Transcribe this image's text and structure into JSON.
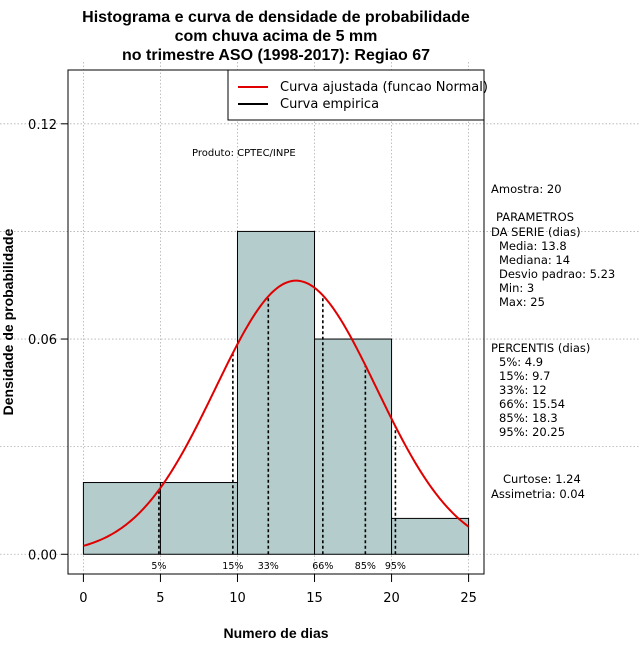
{
  "chart_data": {
    "type": "bar",
    "title": "Histograma e curva de densidade de probabilidade",
    "title_line2": "com chuva acima de 5 mm",
    "title_line3": "no trimestre ASO (1998-2017): Regiao 67",
    "xlabel": "Numero de dias",
    "ylabel": "Densidade de probabilidade",
    "xlim": [
      -1,
      26
    ],
    "ylim": [
      -0.0055,
      0.135
    ],
    "xticks": [
      0,
      5,
      10,
      15,
      20,
      25
    ],
    "xtick_labels": [
      "0",
      "5",
      "10",
      "15",
      "20",
      "25"
    ],
    "yticks": [
      0.0,
      0.06,
      0.12
    ],
    "ytick_labels": [
      "0.00",
      "0.06",
      "0.12"
    ],
    "grid": true,
    "bins": [
      {
        "from": 0,
        "to": 5,
        "density": 0.02
      },
      {
        "from": 5,
        "to": 10,
        "density": 0.02
      },
      {
        "from": 10,
        "to": 15,
        "density": 0.09
      },
      {
        "from": 15,
        "to": 20,
        "density": 0.06
      },
      {
        "from": 20,
        "to": 25,
        "density": 0.01
      }
    ],
    "normal_curve": {
      "mean": 13.8,
      "sd": 5.23,
      "x_from": 0,
      "x_to": 25
    },
    "percentile_lines": [
      {
        "label": "5%",
        "x": 4.9
      },
      {
        "label": "15%",
        "x": 9.7
      },
      {
        "label": "33%",
        "x": 12
      },
      {
        "label": "66%",
        "x": 15.54
      },
      {
        "label": "85%",
        "x": 18.3
      },
      {
        "label": "95%",
        "x": 20.25
      }
    ],
    "legend": {
      "position": "top-right",
      "entries": [
        {
          "label": "Curva ajustada (funcao Normal)",
          "color": "#e00000"
        },
        {
          "label": "Curva empirica",
          "color": "#000000"
        }
      ]
    },
    "annotation": "Produto: CPTEC/INPE",
    "colors": {
      "bar_fill": "#b4cccc",
      "curve": "#e00000",
      "grid": "#b0b0b0"
    }
  },
  "stats_panel": {
    "sample": "Amostra: 20",
    "params_header_1": "PARAMETROS",
    "params_header_2": "DA SERIE (dias)",
    "params": [
      "Media: 13.8",
      "Mediana: 14",
      "Desvio padrao: 5.23",
      "Min: 3",
      "Max: 25"
    ],
    "pct_header": "PERCENTIS (dias)",
    "percentiles": [
      "5%: 4.9",
      "15%: 9.7",
      "33%: 12",
      "66%: 15.54",
      "85%: 18.3",
      "95%: 20.25"
    ],
    "kurtosis": "Curtose: 1.24",
    "skewness": "Assimetria: 0.04"
  }
}
